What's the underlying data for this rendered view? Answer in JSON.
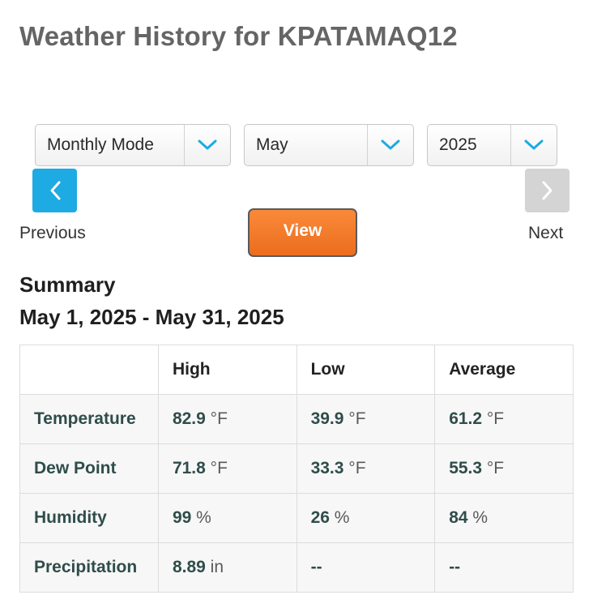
{
  "page": {
    "title": "Weather History for KPATAMAQ12"
  },
  "controls": {
    "mode_select": {
      "value": "Monthly Mode"
    },
    "month_select": {
      "value": "May"
    },
    "year_select": {
      "value": "2025"
    },
    "previous_label": "Previous",
    "next_label": "Next",
    "view_label": "View"
  },
  "summary": {
    "heading": "Summary",
    "date_range": "May 1, 2025 - May 31, 2025",
    "columns": [
      "",
      "High",
      "Low",
      "Average"
    ],
    "rows": [
      {
        "label": "Temperature",
        "cells": [
          {
            "value": "82.9",
            "unit": "°F"
          },
          {
            "value": "39.9",
            "unit": "°F"
          },
          {
            "value": "61.2",
            "unit": "°F"
          }
        ]
      },
      {
        "label": "Dew Point",
        "cells": [
          {
            "value": "71.8",
            "unit": "°F"
          },
          {
            "value": "33.3",
            "unit": "°F"
          },
          {
            "value": "55.3",
            "unit": "°F"
          }
        ]
      },
      {
        "label": "Humidity",
        "cells": [
          {
            "value": "99",
            "unit": "%"
          },
          {
            "value": "26",
            "unit": "%"
          },
          {
            "value": "84",
            "unit": "%"
          }
        ]
      },
      {
        "label": "Precipitation",
        "cells": [
          {
            "value": "8.89",
            "unit": "in"
          },
          {
            "value": "--",
            "unit": ""
          },
          {
            "value": "--",
            "unit": ""
          }
        ]
      }
    ]
  },
  "colors": {
    "prev_button": "#1eaae3",
    "next_button": "#d4d4d4",
    "view_button": "#f07a28",
    "dropdown_arrow": "#1eaae3",
    "row_label": "#2f4d4a"
  }
}
